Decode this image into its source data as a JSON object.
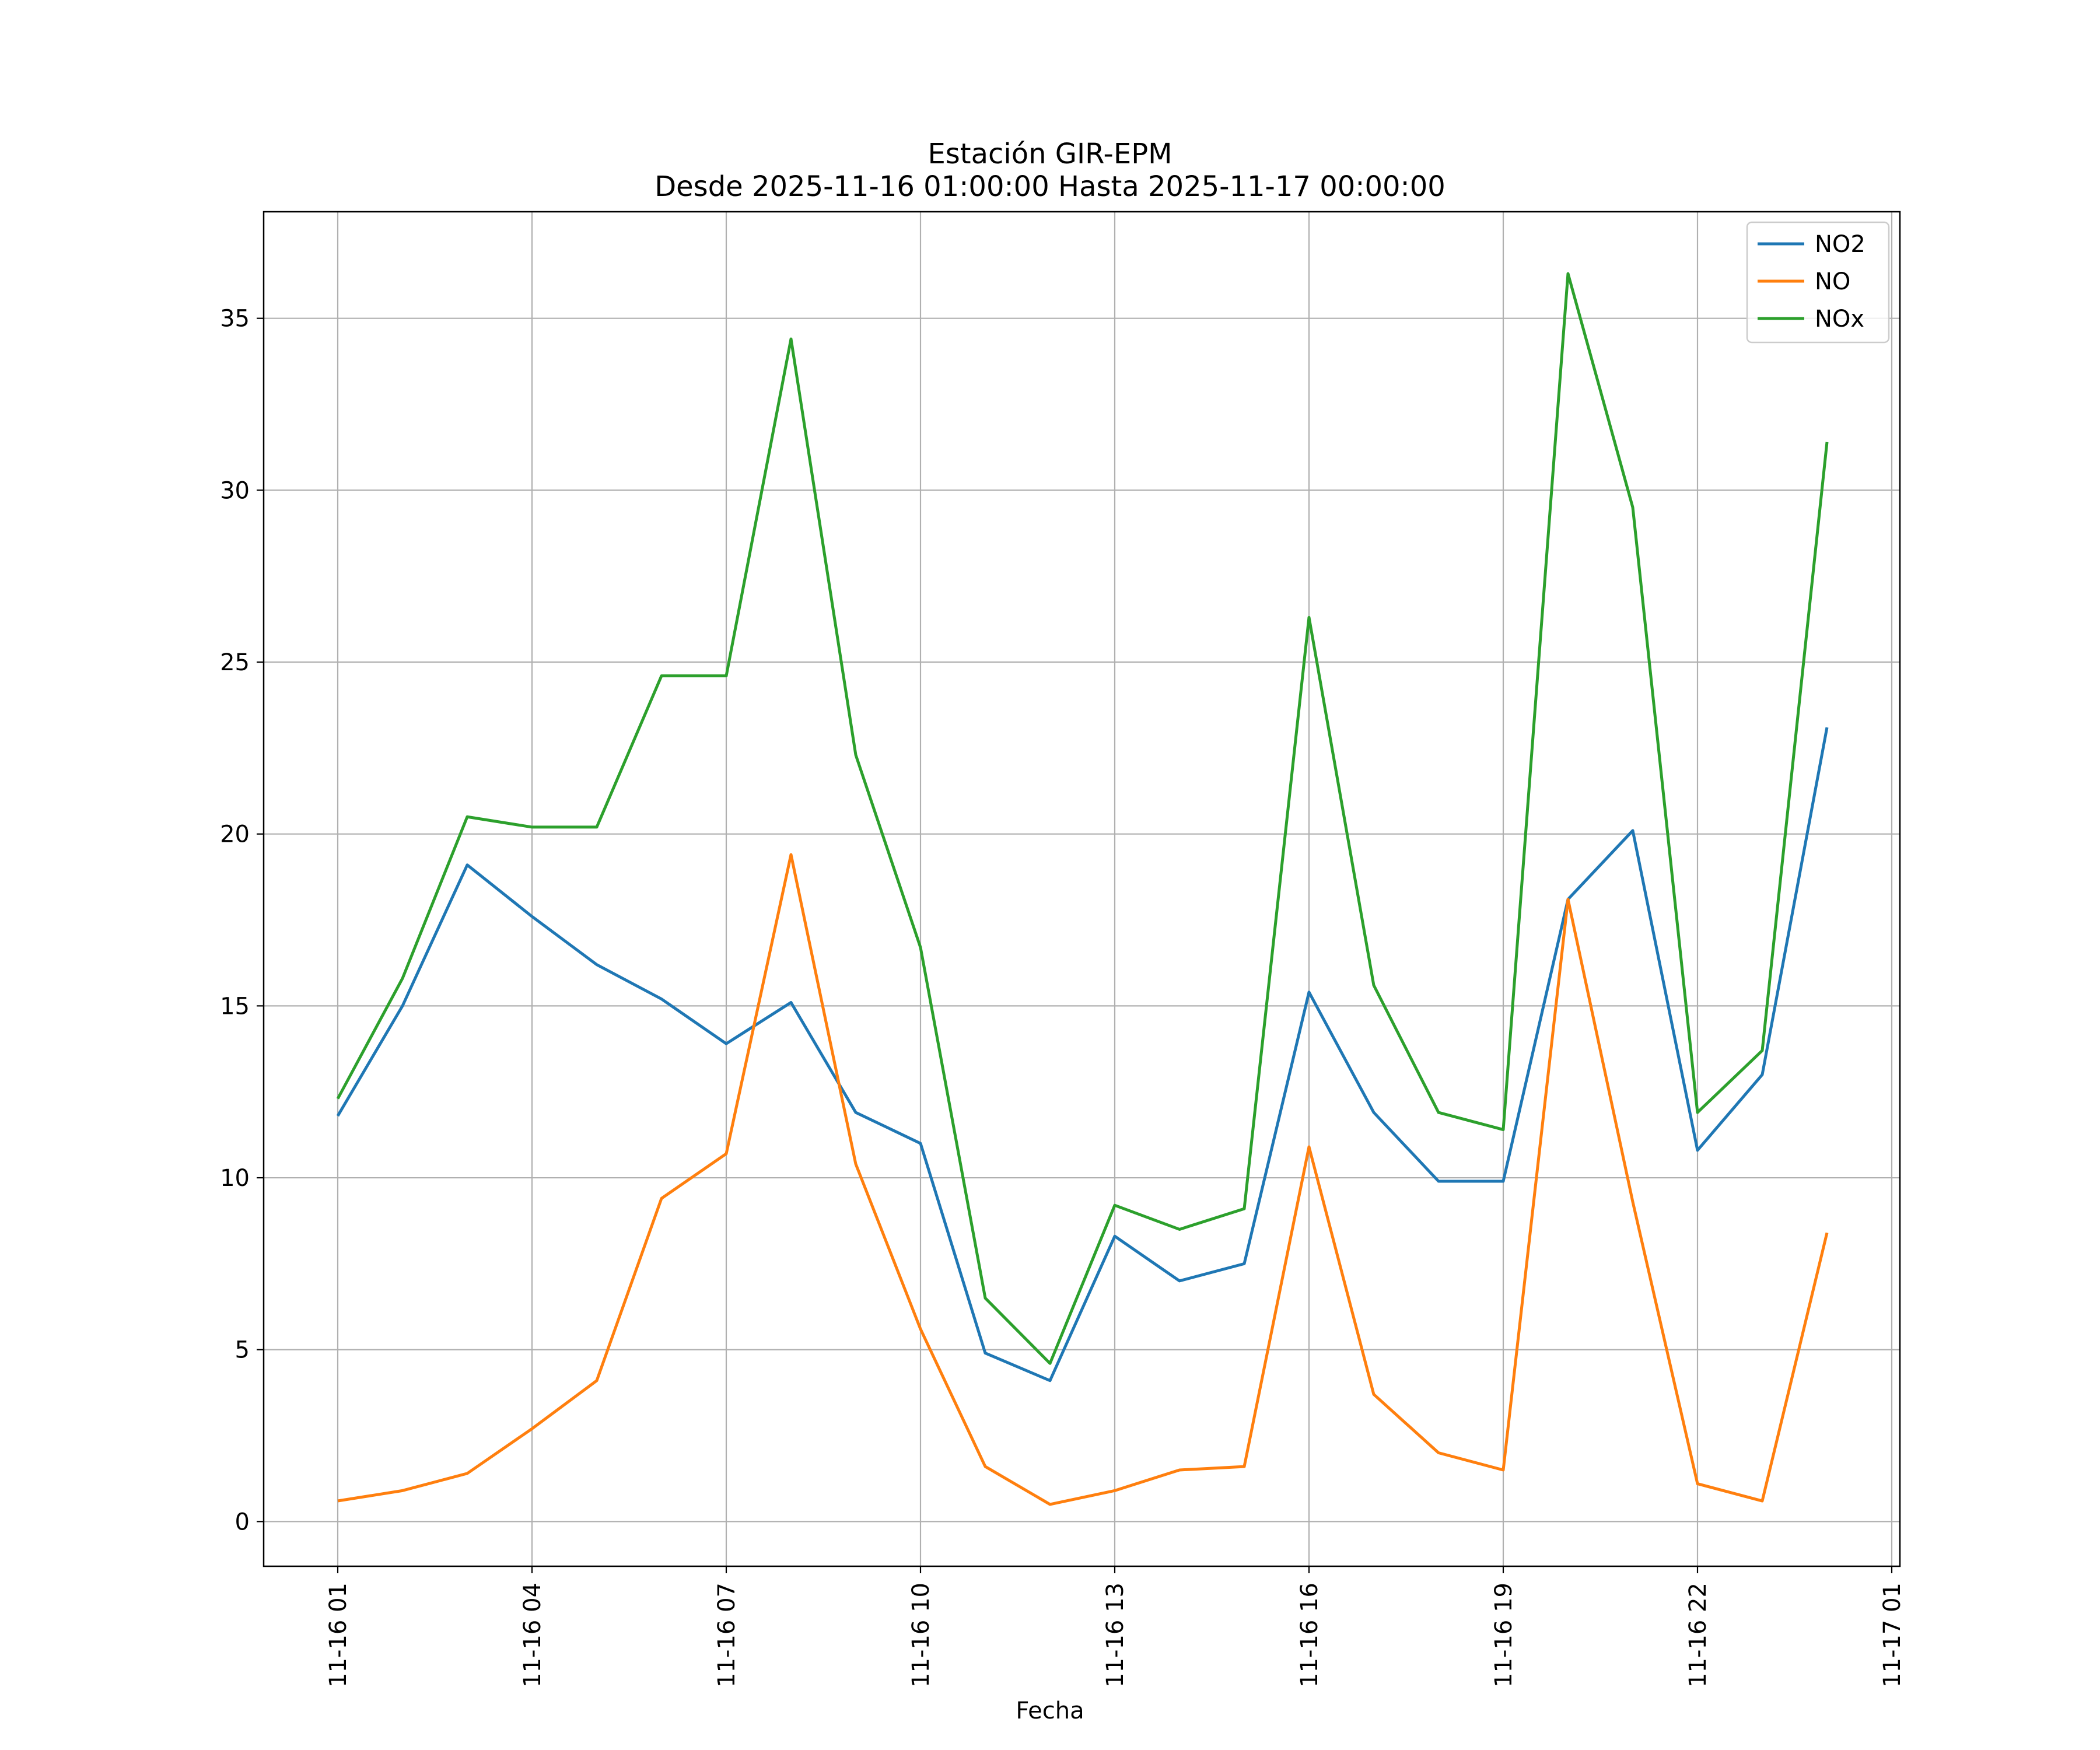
{
  "chart_data": {
    "type": "line",
    "title": "Estación GIR-EPM",
    "subtitle": "Desde 2025-11-16 01:00:00 Hasta 2025-11-17 00:00:00",
    "xlabel": "Fecha",
    "ylabel": "",
    "x": [
      "11-16 01",
      "11-16 02",
      "11-16 03",
      "11-16 04",
      "11-16 05",
      "11-16 06",
      "11-16 07",
      "11-16 08",
      "11-16 09",
      "11-16 10",
      "11-16 11",
      "11-16 12",
      "11-16 13",
      "11-16 14",
      "11-16 15",
      "11-16 16",
      "11-16 17",
      "11-16 18",
      "11-16 19",
      "11-16 20",
      "11-16 21",
      "11-16 22",
      "11-16 23",
      "11-17 00"
    ],
    "xticks": [
      "11-16 01",
      "11-16 04",
      "11-16 07",
      "11-16 10",
      "11-16 13",
      "11-16 16",
      "11-16 19",
      "11-16 22",
      "11-17 01"
    ],
    "xlim": [
      "11-16 00:00 (approx -0.13h before first)",
      "11-17 01:06"
    ],
    "yticks": [
      0,
      5,
      10,
      15,
      20,
      25,
      30,
      35
    ],
    "ylim": [
      -1.3,
      38.1
    ],
    "grid": true,
    "legend": "top-right",
    "series": [
      {
        "name": "NO2",
        "color": "#1f77b4",
        "values": [
          11.8,
          15.0,
          19.1,
          17.6,
          16.2,
          15.2,
          13.9,
          15.1,
          11.9,
          11.0,
          4.9,
          4.1,
          8.3,
          7.0,
          7.5,
          15.4,
          11.9,
          9.9,
          9.9,
          18.1,
          20.1,
          10.8,
          13.0,
          23.1
        ]
      },
      {
        "name": "NO",
        "color": "#ff7f0e",
        "values": [
          0.6,
          0.9,
          1.4,
          2.7,
          4.1,
          9.4,
          10.7,
          19.4,
          10.4,
          5.6,
          1.6,
          0.5,
          0.9,
          1.5,
          1.6,
          10.9,
          3.7,
          2.0,
          1.5,
          18.1,
          9.3,
          1.1,
          0.6,
          8.4
        ]
      },
      {
        "name": "NOx",
        "color": "#2ca02c",
        "values": [
          12.3,
          15.8,
          20.5,
          20.2,
          20.2,
          24.6,
          24.6,
          34.4,
          22.3,
          16.7,
          6.5,
          4.6,
          9.2,
          8.5,
          9.1,
          26.3,
          15.6,
          11.9,
          11.4,
          36.3,
          29.5,
          11.9,
          13.7,
          31.4
        ]
      }
    ]
  }
}
